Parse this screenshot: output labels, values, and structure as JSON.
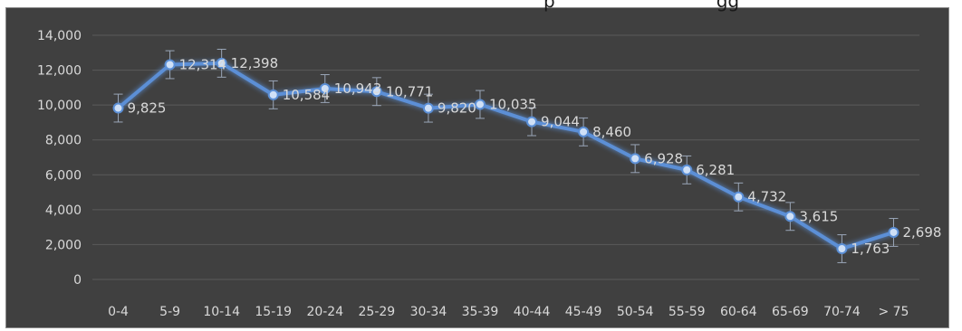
{
  "title_fragment": "p                            gg",
  "chart_data": {
    "type": "line",
    "categories": [
      "0-4",
      "5-9",
      "10-14",
      "15-19",
      "20-24",
      "25-29",
      "30-34",
      "35-39",
      "40-44",
      "45-49",
      "50-54",
      "55-59",
      "60-64",
      "65-69",
      "70-74",
      "> 75"
    ],
    "values": [
      9825,
      12314,
      12398,
      10584,
      10943,
      10771,
      9820,
      10035,
      9044,
      8460,
      6928,
      6281,
      4732,
      3615,
      1763,
      2698
    ],
    "data_labels": [
      "9,825",
      "12,314",
      "12,398",
      "10,584",
      "10,943",
      "10,771",
      "9,820",
      "10,035",
      "9,044",
      "8,460",
      "6,928",
      "6,281",
      "4,732",
      "3,615",
      "1,763",
      "2,698"
    ],
    "error": 800,
    "ylim": [
      0,
      14000
    ],
    "yticks": [
      0,
      2000,
      4000,
      6000,
      8000,
      10000,
      12000,
      14000
    ],
    "ytick_labels": [
      "0",
      "2,000",
      "4,000",
      "6,000",
      "8,000",
      "10,000",
      "12,000",
      "14,000"
    ],
    "grid": true,
    "colors": {
      "line": "#5b8fd6",
      "marker": "#cfe0f7",
      "grid": "#5a5a5a",
      "text": "#d9d9d9",
      "background": "#404040"
    }
  }
}
